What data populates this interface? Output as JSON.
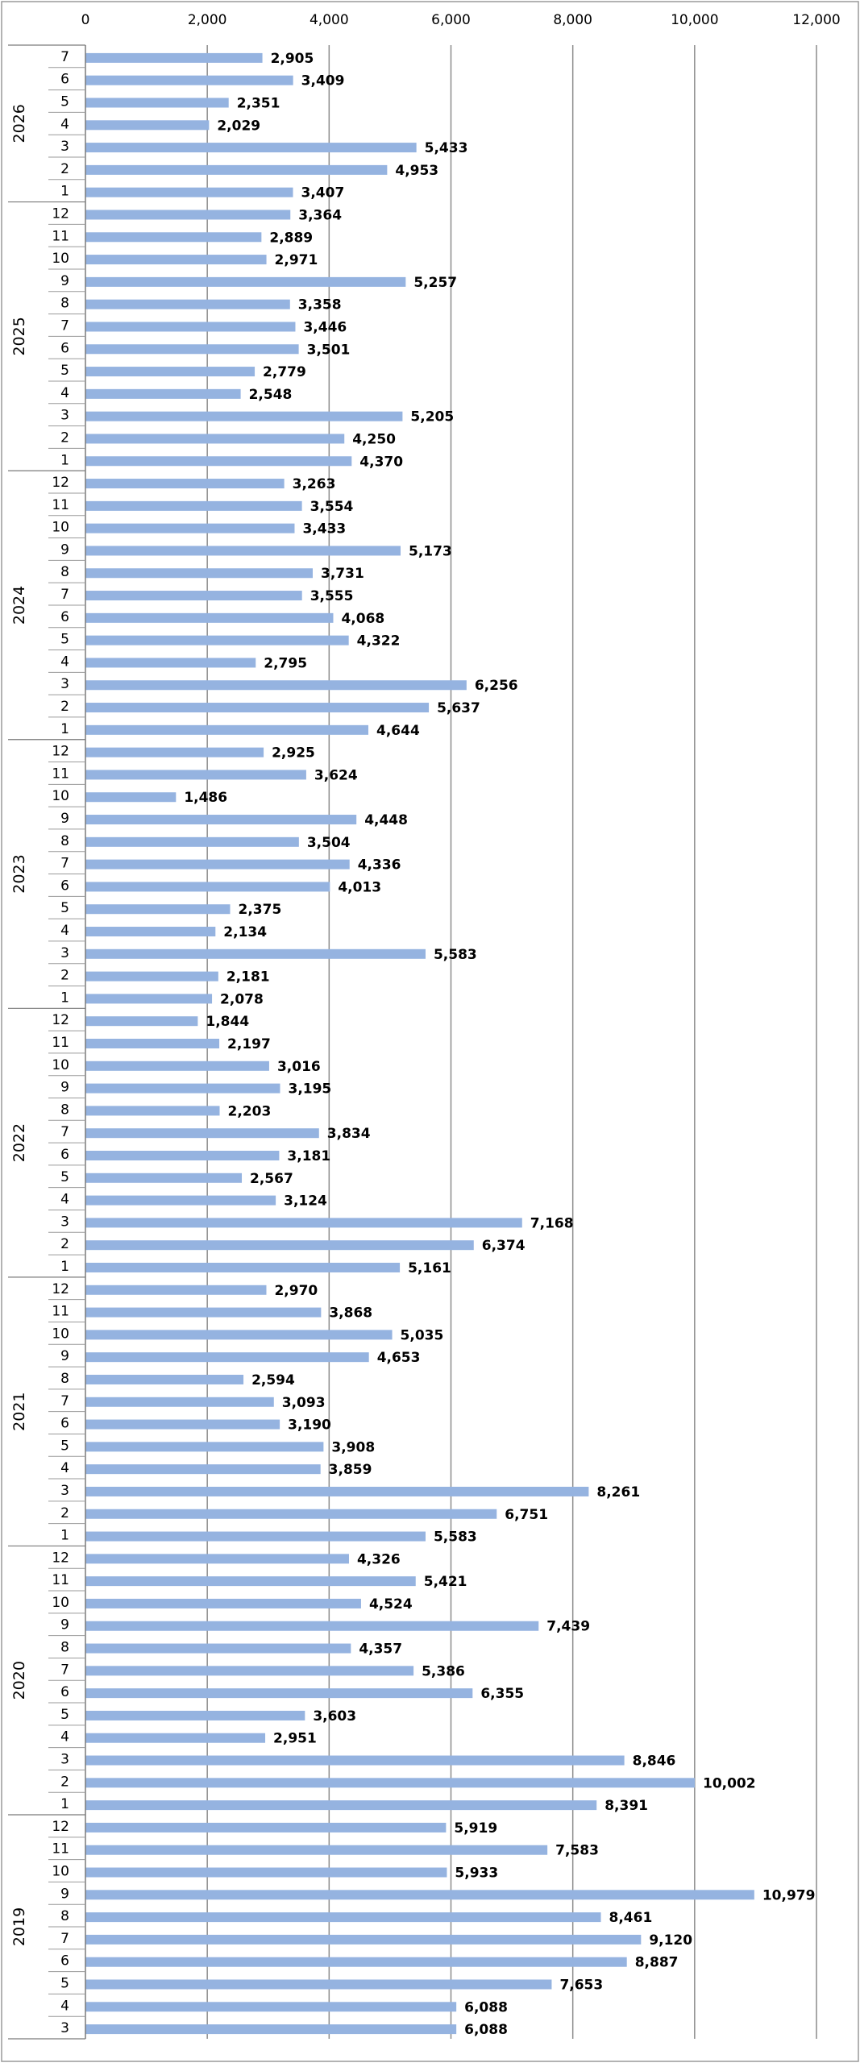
{
  "chart_data": {
    "type": "bar",
    "orientation": "horizontal",
    "xlim": [
      0,
      12000
    ],
    "x_ticks": [
      "0",
      "2,000",
      "4,000",
      "6,000",
      "8,000",
      "10,000",
      "12,000"
    ],
    "grid": true,
    "bar_color": "#95b3e0",
    "groups": [
      {
        "year": "2026",
        "months": [
          "7",
          "6",
          "5",
          "4",
          "3",
          "2",
          "1"
        ],
        "values": [
          2905,
          3409,
          2351,
          2029,
          5433,
          4953,
          3407
        ],
        "labels": [
          "2,905",
          "3,409",
          "2,351",
          "2,029",
          "5,433",
          "4,953",
          "3,407"
        ]
      },
      {
        "year": "2025",
        "months": [
          "12",
          "11",
          "10",
          "9",
          "8",
          "7",
          "6",
          "5",
          "4",
          "3",
          "2",
          "1"
        ],
        "values": [
          3364,
          2889,
          2971,
          5257,
          3358,
          3446,
          3501,
          2779,
          2548,
          5205,
          4250,
          4370
        ],
        "labels": [
          "3,364",
          "2,889",
          "2,971",
          "5,257",
          "3,358",
          "3,446",
          "3,501",
          "2,779",
          "2,548",
          "5,205",
          "4,250",
          "4,370"
        ]
      },
      {
        "year": "2024",
        "months": [
          "12",
          "11",
          "10",
          "9",
          "8",
          "7",
          "6",
          "5",
          "4",
          "3",
          "2",
          "1"
        ],
        "values": [
          3263,
          3554,
          3433,
          5173,
          3731,
          3555,
          4068,
          4322,
          2795,
          6256,
          5637,
          4644
        ],
        "labels": [
          "3,263",
          "3,554",
          "3,433",
          "5,173",
          "3,731",
          "3,555",
          "4,068",
          "4,322",
          "2,795",
          "6,256",
          "5,637",
          "4,644"
        ]
      },
      {
        "year": "2023",
        "months": [
          "12",
          "11",
          "10",
          "9",
          "8",
          "7",
          "6",
          "5",
          "4",
          "3",
          "2",
          "1"
        ],
        "values": [
          2925,
          3624,
          1486,
          4448,
          3504,
          4336,
          4013,
          2375,
          2134,
          5583,
          2181,
          2078
        ],
        "labels": [
          "2,925",
          "3,624",
          "1,486",
          "4,448",
          "3,504",
          "4,336",
          "4,013",
          "2,375",
          "2,134",
          "5,583",
          "2,181",
          "2,078"
        ]
      },
      {
        "year": "2022",
        "months": [
          "12",
          "11",
          "10",
          "9",
          "8",
          "7",
          "6",
          "5",
          "4",
          "3",
          "2",
          "1"
        ],
        "values": [
          1844,
          2197,
          3016,
          3195,
          2203,
          3834,
          3181,
          2567,
          3124,
          7168,
          6374,
          5161
        ],
        "labels": [
          "1,844",
          "2,197",
          "3,016",
          "3,195",
          "2,203",
          "3,834",
          "3,181",
          "2,567",
          "3,124",
          "7,168",
          "6,374",
          "5,161"
        ]
      },
      {
        "year": "2021",
        "months": [
          "12",
          "11",
          "10",
          "9",
          "8",
          "7",
          "6",
          "5",
          "4",
          "3",
          "2",
          "1"
        ],
        "values": [
          2970,
          3868,
          5035,
          4653,
          2594,
          3093,
          3190,
          3908,
          3859,
          8261,
          6751,
          5583
        ],
        "labels": [
          "2,970",
          "3,868",
          "5,035",
          "4,653",
          "2,594",
          "3,093",
          "3,190",
          "3,908",
          "3,859",
          "8,261",
          "6,751",
          "5,583"
        ]
      },
      {
        "year": "2020",
        "months": [
          "12",
          "11",
          "10",
          "9",
          "8",
          "7",
          "6",
          "5",
          "4",
          "3",
          "2",
          "1"
        ],
        "values": [
          4326,
          5421,
          4524,
          7439,
          4357,
          5386,
          6355,
          3603,
          2951,
          8846,
          10002,
          8391
        ],
        "labels": [
          "4,326",
          "5,421",
          "4,524",
          "7,439",
          "4,357",
          "5,386",
          "6,355",
          "3,603",
          "2,951",
          "8,846",
          "10,002",
          "8,391"
        ]
      },
      {
        "year": "2019",
        "months": [
          "12",
          "11",
          "10",
          "9",
          "8",
          "7",
          "6",
          "5",
          "4",
          "3"
        ],
        "values": [
          5919,
          7583,
          5933,
          10979,
          8461,
          9120,
          8887,
          7653,
          6088,
          6088
        ],
        "labels": [
          "5,919",
          "7,583",
          "5,933",
          "10,979",
          "8,461",
          "9,120",
          "8,887",
          "7,653",
          "6,088",
          "6,088"
        ]
      }
    ]
  }
}
